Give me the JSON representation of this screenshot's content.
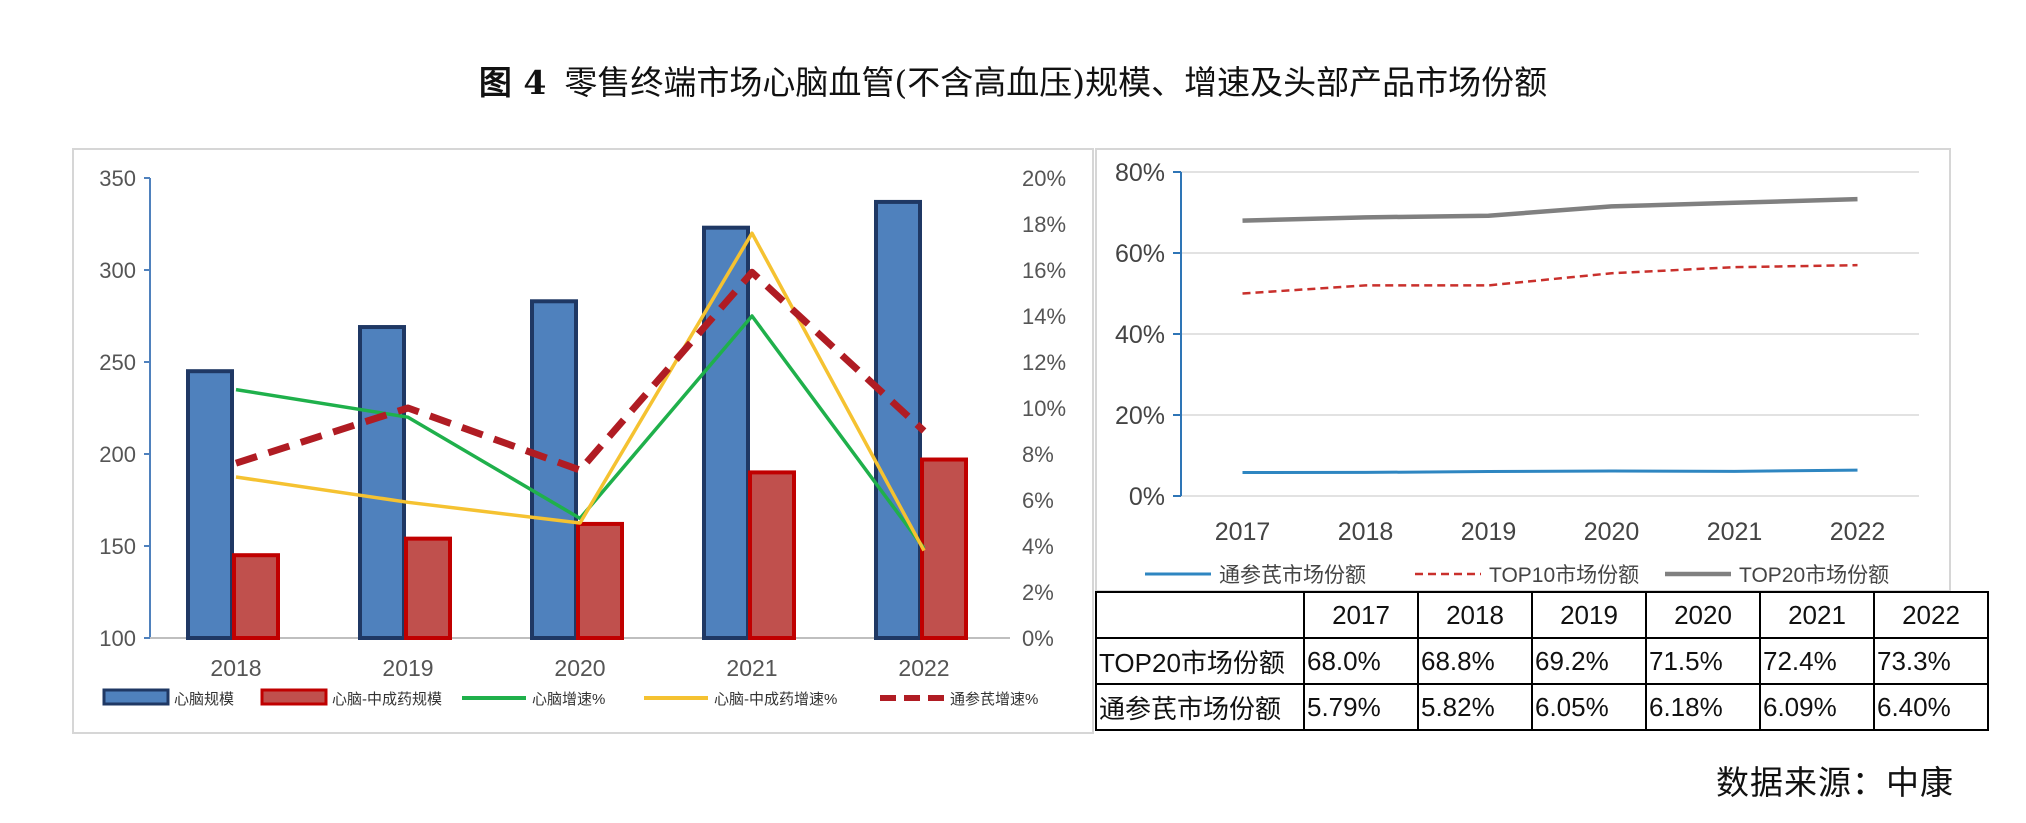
{
  "title": {
    "figure_label": "图 4",
    "text": "零售终端市场心脑血管(不含高血压)规模、增速及头部产品市场份额"
  },
  "source": "数据来源：中康",
  "colors": {
    "blue_bar": "#4f81bd",
    "blue_edge": "#1f3864",
    "red_bar": "#c0504d",
    "red_edge": "#c00000",
    "green": "#1fb04b",
    "yellow": "#f5c231",
    "dashed_red": "#b01c23",
    "line_blue": "#2e86c1",
    "line_red": "#c9302c",
    "line_gray": "#808080"
  },
  "chart_data": [
    {
      "type": "bar",
      "combo": true,
      "categories": [
        "2018",
        "2019",
        "2020",
        "2021",
        "2022"
      ],
      "y_left": {
        "range": [
          100,
          350
        ],
        "ticks": [
          "100",
          "150",
          "200",
          "250",
          "300",
          "350"
        ]
      },
      "y_right": {
        "range": [
          0,
          20
        ],
        "ticks": [
          "0%",
          "2%",
          "4%",
          "6%",
          "8%",
          "10%",
          "12%",
          "14%",
          "16%",
          "18%",
          "20%"
        ]
      },
      "series": [
        {
          "name": "心脑规模",
          "kind": "bar",
          "axis": "left",
          "values": [
            245,
            269,
            283,
            323,
            337
          ]
        },
        {
          "name": "心脑-中成药规模",
          "kind": "bar",
          "axis": "left",
          "values": [
            145,
            154,
            162,
            190,
            197
          ]
        },
        {
          "name": "心脑增速%",
          "kind": "line",
          "axis": "right",
          "values": [
            10.8,
            9.6,
            5.2,
            14.0,
            3.9
          ]
        },
        {
          "name": "心脑-中成药增速%",
          "kind": "line",
          "axis": "right",
          "values": [
            7.0,
            5.9,
            5.0,
            17.6,
            3.8
          ]
        },
        {
          "name": "通参芪增速%",
          "kind": "dashed-line",
          "axis": "right",
          "values": [
            7.6,
            10.0,
            7.3,
            15.9,
            9.0
          ]
        }
      ]
    },
    {
      "type": "line",
      "x": [
        "2017",
        "2018",
        "2019",
        "2020",
        "2021",
        "2022"
      ],
      "y_ticks": [
        "0%",
        "20%",
        "40%",
        "60%",
        "80%"
      ],
      "ylim": [
        0,
        80
      ],
      "series": [
        {
          "name": "通参芪市场份额",
          "style": "solid",
          "values": [
            5.79,
            5.82,
            6.05,
            6.18,
            6.09,
            6.4
          ]
        },
        {
          "name": "TOP10市场份额",
          "style": "dashed",
          "values": [
            50.0,
            52.0,
            52.0,
            55.0,
            56.5,
            57.0
          ]
        },
        {
          "name": "TOP20市场份额",
          "style": "solid",
          "values": [
            68.0,
            68.8,
            69.2,
            71.5,
            72.4,
            73.3
          ]
        }
      ]
    },
    {
      "type": "table",
      "columns": [
        "",
        "2017",
        "2018",
        "2019",
        "2020",
        "2021",
        "2022"
      ],
      "rows": [
        [
          "TOP20市场份额",
          "68.0%",
          "68.8%",
          "69.2%",
          "71.5%",
          "72.4%",
          "73.3%"
        ],
        [
          "通参芪市场份额",
          "5.79%",
          "5.82%",
          "6.05%",
          "6.18%",
          "6.09%",
          "6.40%"
        ]
      ]
    }
  ]
}
